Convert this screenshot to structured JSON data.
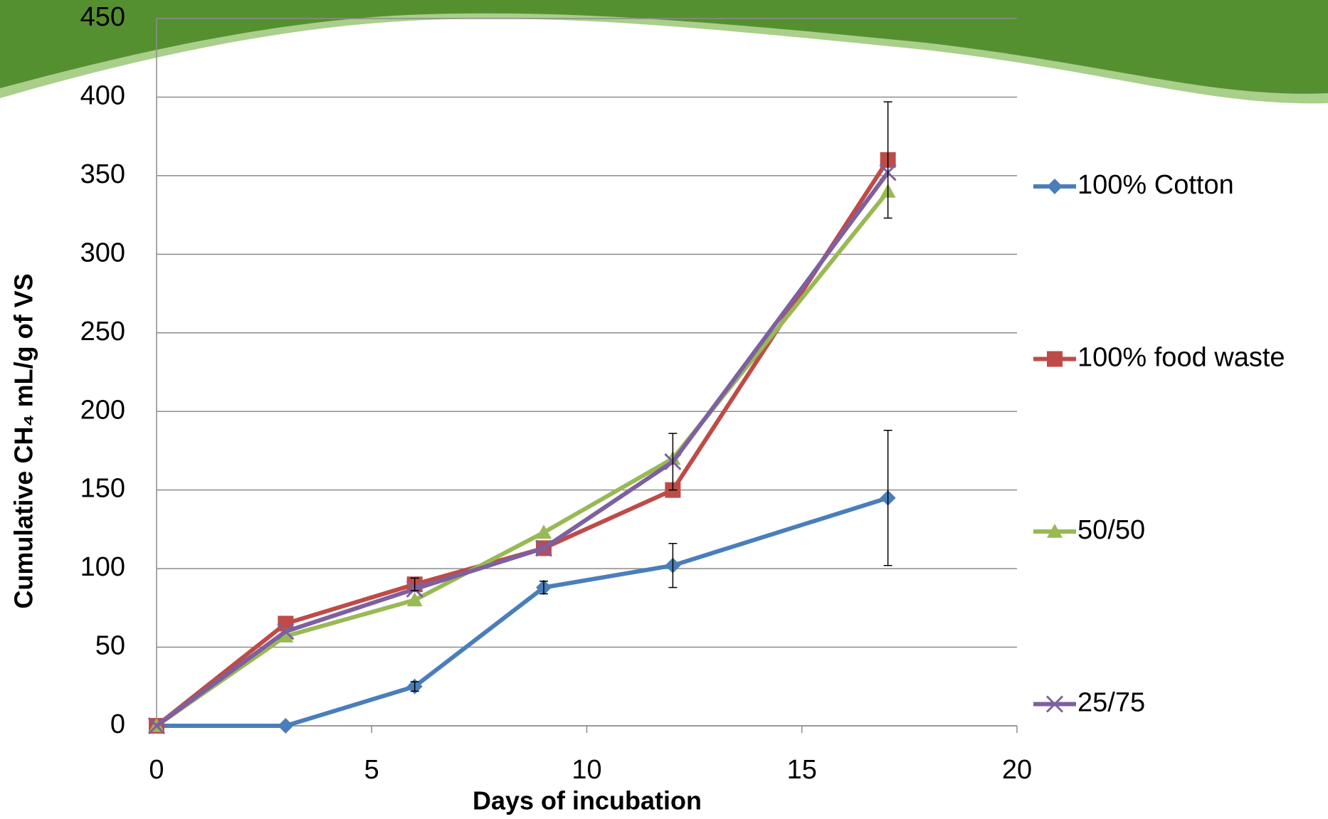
{
  "chart_data": {
    "type": "line",
    "x_label": "Days of incubation",
    "y_label": "Cumulative CH₄ mL/g of VS",
    "x": [
      0,
      3,
      6,
      9,
      12,
      17
    ],
    "series": [
      {
        "name": "100% Cotton",
        "color": "#4a7ebb",
        "marker": "diamond",
        "values": [
          0,
          0,
          25,
          88,
          102,
          145
        ],
        "errors": [
          null,
          null,
          3,
          4,
          14,
          43
        ]
      },
      {
        "name": "100% food waste",
        "color": "#be4b48",
        "marker": "square",
        "values": [
          0,
          65,
          90,
          113,
          150,
          360
        ],
        "errors": [
          null,
          null,
          4,
          null,
          null,
          37
        ]
      },
      {
        "name": "50/50",
        "color": "#98b954",
        "marker": "triangle",
        "values": [
          0,
          57,
          80,
          123,
          170,
          340
        ],
        "errors": [
          null,
          null,
          null,
          null,
          null,
          null
        ]
      },
      {
        "name": "25/75",
        "color": "#7d60a0",
        "marker": "x",
        "values": [
          0,
          60,
          87,
          113,
          168,
          352
        ],
        "errors": [
          null,
          null,
          null,
          null,
          18,
          null
        ]
      }
    ],
    "xlim": [
      0,
      20
    ],
    "xticks": [
      0,
      5,
      10,
      15,
      20
    ],
    "ylim": [
      0,
      450
    ],
    "yticks": [
      0,
      50,
      100,
      150,
      200,
      250,
      300,
      350,
      400,
      450
    ],
    "grid": true,
    "legend": "right"
  }
}
